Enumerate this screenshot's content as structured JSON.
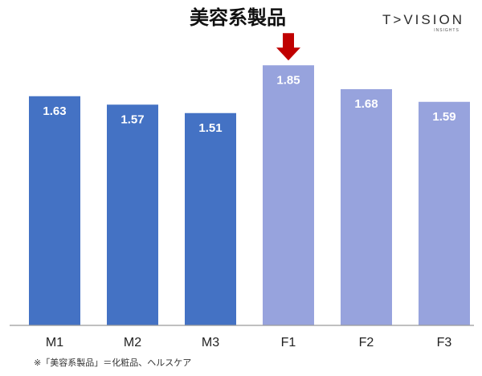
{
  "logo": {
    "main": "T>VISION",
    "sub": "INSIGHTS"
  },
  "footnote": "※「美容系製品」＝化粧品、ヘルスケア",
  "colors": {
    "male": "#4472c4",
    "female": "#97a3dd",
    "arrow": "#c00000",
    "axis": "#9a9a9a"
  },
  "chart_data": {
    "type": "bar",
    "title": "美容系製品",
    "categories": [
      "M1",
      "M2",
      "M3",
      "F1",
      "F2",
      "F3"
    ],
    "values": [
      1.63,
      1.57,
      1.51,
      1.85,
      1.68,
      1.59
    ],
    "value_labels": [
      "1.63",
      "1.57",
      "1.51",
      "1.85",
      "1.68",
      "1.59"
    ],
    "bar_colors": [
      "#4472c4",
      "#4472c4",
      "#4472c4",
      "#97a3dd",
      "#97a3dd",
      "#97a3dd"
    ],
    "highlight": "F1",
    "xlabel": "",
    "ylabel": "",
    "ylim": [
      0,
      2
    ],
    "grid": false,
    "legend": "none"
  }
}
